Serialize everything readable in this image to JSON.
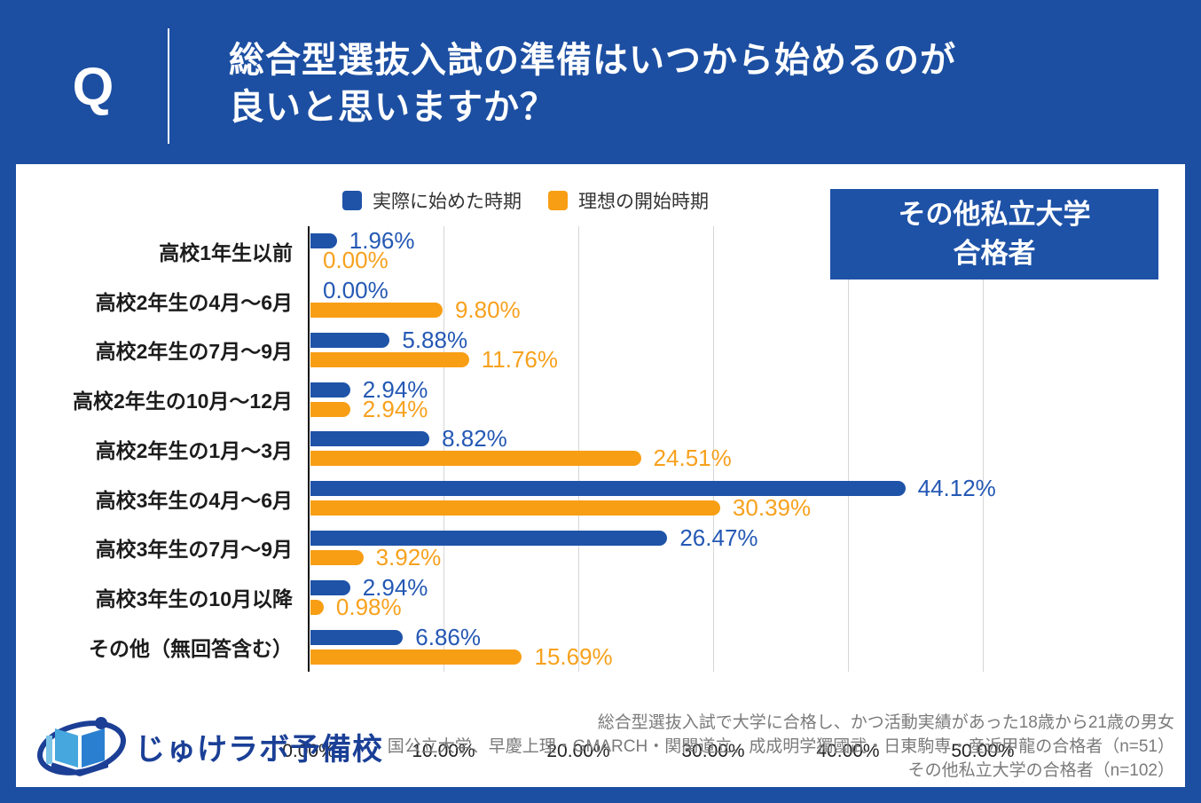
{
  "header": {
    "q": "Q",
    "title_lines": [
      "総合型選抜入試の準備はいつから始めるのが",
      "良いと思いますか？"
    ]
  },
  "badge": {
    "lines": [
      "その他私立大学",
      "合格者"
    ]
  },
  "chart_data": {
    "type": "bar",
    "orientation": "horizontal",
    "categories": [
      "高校1年生以前",
      "高校2年生の4月〜6月",
      "高校2年生の7月〜9月",
      "高校2年生の10月〜12月",
      "高校2年生の1月〜3月",
      "高校3年生の4月〜6月",
      "高校3年生の7月〜9月",
      "高校3年生の10月以降",
      "その他（無回答含む）"
    ],
    "series": [
      {
        "name": "実際に始めた時期",
        "color": "#1e53a8",
        "label_color": "#2458b4",
        "values": [
          1.96,
          0.0,
          5.88,
          2.94,
          8.82,
          44.12,
          26.47,
          2.94,
          6.86
        ]
      },
      {
        "name": "理想の開始時期",
        "color": "#f89e14",
        "label_color": "#f7a11d",
        "values": [
          0.0,
          9.8,
          11.76,
          2.94,
          24.51,
          30.39,
          3.92,
          0.98,
          15.69
        ]
      }
    ],
    "value_suffix": "%",
    "value_decimals": 2,
    "xlim": [
      0,
      55
    ],
    "x_tick_step": 10,
    "x_ticks": [
      "0.00%",
      "10.00%",
      "20.00%",
      "30.00%",
      "40.00%",
      "50.00%"
    ],
    "grid": true,
    "legend_position": "top"
  },
  "colors": {
    "background": "#1c4fa2",
    "card": "#ffffff",
    "badge": "#1e52a7",
    "gridline": "#d6d6d6",
    "axis": "#111111",
    "footnote": "#7b7b7b",
    "logo_text": "#1a3f96"
  },
  "footer": {
    "logo_text": "じゅけラボ予備校",
    "notes": [
      "総合型選抜入試で大学に合格し、かつ活動実績があった18歳から21歳の男女",
      "国公立大学、早慶上理・GMARCH・関関道立、成成明学獨國武・日東駒専・産近甲龍の合格者（n=51）",
      "その他私立大学の合格者（n=102）"
    ]
  }
}
